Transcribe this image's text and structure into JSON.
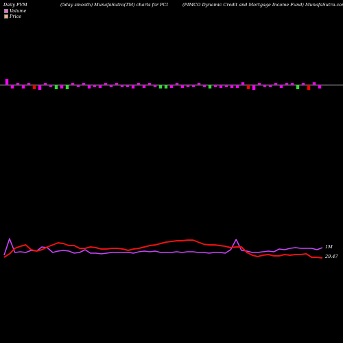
{
  "header": {
    "left": "Daily PVM",
    "mid": "(5day smooth) MunafaSutra(TM) charts for PCI",
    "right": "(PIMCO Dynamic Credit and Mortgage  Income  Fund) MunafaSutra.com"
  },
  "legend": [
    {
      "label": "Volume",
      "color": "#ff66cc"
    },
    {
      "label": "Price",
      "color": "#ffaa88"
    }
  ],
  "colors": {
    "magenta": "#ff00ff",
    "green": "#33dd33",
    "red": "#ff0000",
    "pvm": "#cc44ff",
    "price": "#ee1111",
    "axis": "#888888"
  },
  "chart_data": {
    "type": "line",
    "label_top": "1M",
    "label_price": "29.47",
    "volume_bars": [
      {
        "dir": "up",
        "h": 9,
        "c": "magenta"
      },
      {
        "dir": "down",
        "h": 5,
        "c": "magenta"
      },
      {
        "dir": "up",
        "h": 3,
        "c": "magenta"
      },
      {
        "dir": "down",
        "h": 5,
        "c": "magenta"
      },
      {
        "dir": "up",
        "h": 3,
        "c": "magenta"
      },
      {
        "dir": "down",
        "h": 6,
        "c": "red"
      },
      {
        "dir": "down",
        "h": 7,
        "c": "magenta"
      },
      {
        "dir": "up",
        "h": 3,
        "c": "magenta"
      },
      {
        "dir": "down",
        "h": 3,
        "c": "magenta"
      },
      {
        "dir": "down",
        "h": 6,
        "c": "green"
      },
      {
        "dir": "down",
        "h": 5,
        "c": "magenta"
      },
      {
        "dir": "down",
        "h": 6,
        "c": "green"
      },
      {
        "dir": "up",
        "h": 3,
        "c": "magenta"
      },
      {
        "dir": "down",
        "h": 3,
        "c": "magenta"
      },
      {
        "dir": "up",
        "h": 3,
        "c": "magenta"
      },
      {
        "dir": "down",
        "h": 5,
        "c": "magenta"
      },
      {
        "dir": "down",
        "h": 3,
        "c": "magenta"
      },
      {
        "dir": "down",
        "h": 4,
        "c": "magenta"
      },
      {
        "dir": "up",
        "h": 3,
        "c": "magenta"
      },
      {
        "dir": "down",
        "h": 3,
        "c": "magenta"
      },
      {
        "dir": "up",
        "h": 3,
        "c": "magenta"
      },
      {
        "dir": "down",
        "h": 3,
        "c": "magenta"
      },
      {
        "dir": "down",
        "h": 3,
        "c": "magenta"
      },
      {
        "dir": "down",
        "h": 5,
        "c": "magenta"
      },
      {
        "dir": "up",
        "h": 3,
        "c": "magenta"
      },
      {
        "dir": "down",
        "h": 4,
        "c": "magenta"
      },
      {
        "dir": "up",
        "h": 3,
        "c": "magenta"
      },
      {
        "dir": "down",
        "h": 3,
        "c": "magenta"
      },
      {
        "dir": "down",
        "h": 5,
        "c": "green"
      },
      {
        "dir": "down",
        "h": 5,
        "c": "green"
      },
      {
        "dir": "down",
        "h": 4,
        "c": "magenta"
      },
      {
        "dir": "up",
        "h": 3,
        "c": "magenta"
      },
      {
        "dir": "down",
        "h": 4,
        "c": "magenta"
      },
      {
        "dir": "down",
        "h": 3,
        "c": "magenta"
      },
      {
        "dir": "down",
        "h": 3,
        "c": "magenta"
      },
      {
        "dir": "up",
        "h": 3,
        "c": "magenta"
      },
      {
        "dir": "down",
        "h": 3,
        "c": "magenta"
      },
      {
        "dir": "down",
        "h": 5,
        "c": "green"
      },
      {
        "dir": "down",
        "h": 3,
        "c": "magenta"
      },
      {
        "dir": "down",
        "h": 4,
        "c": "magenta"
      },
      {
        "dir": "down",
        "h": 3,
        "c": "magenta"
      },
      {
        "dir": "down",
        "h": 4,
        "c": "magenta"
      },
      {
        "dir": "down",
        "h": 4,
        "c": "magenta"
      },
      {
        "dir": "up",
        "h": 4,
        "c": "magenta"
      },
      {
        "dir": "down",
        "h": 6,
        "c": "red"
      },
      {
        "dir": "down",
        "h": 7,
        "c": "magenta"
      },
      {
        "dir": "up",
        "h": 3,
        "c": "magenta"
      },
      {
        "dir": "down",
        "h": 3,
        "c": "magenta"
      },
      {
        "dir": "down",
        "h": 3,
        "c": "magenta"
      },
      {
        "dir": "up",
        "h": 3,
        "c": "magenta"
      },
      {
        "dir": "down",
        "h": 4,
        "c": "magenta"
      },
      {
        "dir": "up",
        "h": 3,
        "c": "magenta"
      },
      {
        "dir": "up",
        "h": 3,
        "c": "magenta"
      },
      {
        "dir": "down",
        "h": 6,
        "c": "green"
      },
      {
        "dir": "up",
        "h": 3,
        "c": "magenta"
      },
      {
        "dir": "down",
        "h": 7,
        "c": "red"
      },
      {
        "dir": "up",
        "h": 4,
        "c": "magenta"
      },
      {
        "dir": "down",
        "h": 5,
        "c": "magenta"
      }
    ],
    "series": [
      {
        "key": "pvm",
        "values": [
          372,
          348,
          368,
          367,
          368,
          365,
          366,
          360,
          361,
          368,
          366,
          365,
          366,
          369,
          368,
          364,
          369,
          369,
          370,
          369,
          368,
          368,
          368,
          368,
          369,
          367,
          366,
          367,
          366,
          368,
          368,
          368,
          367,
          368,
          367,
          367,
          368,
          368,
          369,
          368,
          368,
          369,
          364,
          349,
          365,
          366,
          368,
          368,
          367,
          366,
          367,
          363,
          364,
          362,
          361,
          362,
          362,
          362,
          364,
          361
        ]
      },
      {
        "key": "price",
        "values": [
          375,
          370,
          362,
          359,
          357,
          364,
          366,
          364,
          360,
          357,
          354,
          355,
          358,
          358,
          362,
          362,
          360,
          361,
          363,
          363,
          362,
          362,
          363,
          365,
          363,
          362,
          360,
          358,
          357,
          355,
          353,
          352,
          351,
          351,
          350,
          350,
          353,
          356,
          357,
          357,
          358,
          359,
          361,
          360,
          360,
          368,
          372,
          374,
          372,
          371,
          373,
          373,
          371,
          372,
          371,
          371,
          370,
          375,
          375,
          376
        ]
      }
    ]
  }
}
